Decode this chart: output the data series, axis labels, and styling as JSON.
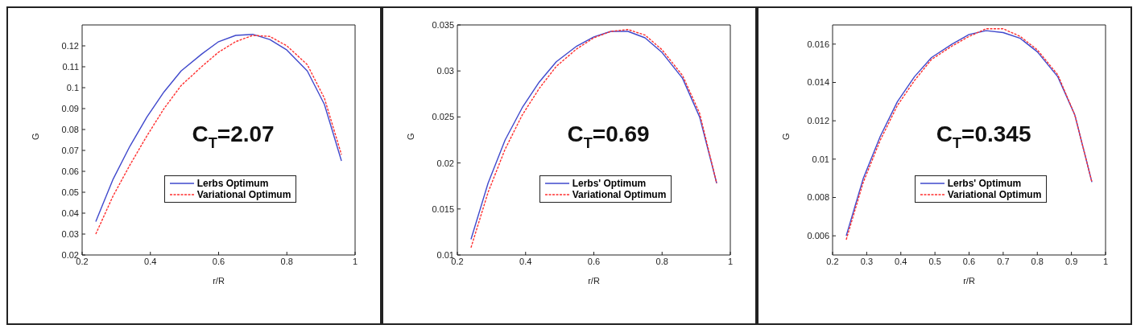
{
  "chart_data": [
    {
      "type": "line",
      "xlabel": "r/R",
      "ylabel": "G",
      "annotations": [
        "C$_{T}$=2.07"
      ],
      "x": [
        0.24,
        0.29,
        0.34,
        0.39,
        0.44,
        0.49,
        0.55,
        0.6,
        0.65,
        0.7,
        0.75,
        0.8,
        0.86,
        0.91,
        0.96
      ],
      "xlim": [
        0.2,
        1
      ],
      "xticks": [
        0.2,
        0.4,
        0.6,
        0.8,
        1
      ],
      "ylim": [
        0.02,
        0.13
      ],
      "yticks": [
        0.02,
        0.03,
        0.04,
        0.05,
        0.06,
        0.07,
        0.08,
        0.09,
        0.1,
        0.11,
        0.12
      ],
      "legend": "bottom",
      "grid": false,
      "marker": "none",
      "series": [
        {
          "name": "Lerbs Optimum",
          "color": "#3f48cc",
          "line_style": "solid",
          "values": [
            0.036,
            0.056,
            0.072,
            0.086,
            0.098,
            0.108,
            0.116,
            0.122,
            0.125,
            0.1255,
            0.123,
            0.118,
            0.108,
            0.092,
            0.065
          ]
        },
        {
          "name": "Variational Optimum",
          "color": "#ff3030",
          "line_style": "dashed",
          "values": [
            0.03,
            0.048,
            0.063,
            0.077,
            0.09,
            0.101,
            0.11,
            0.117,
            0.122,
            0.125,
            0.1245,
            0.12,
            0.111,
            0.095,
            0.068
          ]
        }
      ]
    },
    {
      "type": "line",
      "xlabel": "r/R",
      "ylabel": "G",
      "annotations": [
        "C$_{T}$=0.69"
      ],
      "x": [
        0.24,
        0.29,
        0.34,
        0.39,
        0.44,
        0.49,
        0.55,
        0.6,
        0.65,
        0.7,
        0.75,
        0.8,
        0.86,
        0.91,
        0.96
      ],
      "xlim": [
        0.2,
        1
      ],
      "xticks": [
        0.2,
        0.4,
        0.6,
        0.8,
        1
      ],
      "ylim": [
        0.01,
        0.035
      ],
      "yticks": [
        0.01,
        0.015,
        0.02,
        0.025,
        0.03,
        0.035
      ],
      "legend": "bottom",
      "grid": false,
      "marker": "none",
      "series": [
        {
          "name": "Lerbs' Optimum",
          "color": "#3f48cc",
          "line_style": "solid",
          "values": [
            0.0117,
            0.0178,
            0.0225,
            0.026,
            0.0288,
            0.031,
            0.0327,
            0.0337,
            0.0343,
            0.0343,
            0.0336,
            0.032,
            0.0292,
            0.025,
            0.0178
          ]
        },
        {
          "name": "Variational Optimum",
          "color": "#ff3030",
          "line_style": "dashed",
          "values": [
            0.0108,
            0.0168,
            0.0215,
            0.0252,
            0.0281,
            0.0305,
            0.0324,
            0.0336,
            0.0343,
            0.0345,
            0.0339,
            0.0323,
            0.0295,
            0.0254,
            0.0178
          ]
        }
      ]
    },
    {
      "type": "line",
      "xlabel": "r/R",
      "ylabel": "G",
      "annotations": [
        "C$_{T}$=0.345"
      ],
      "x": [
        0.24,
        0.29,
        0.34,
        0.39,
        0.44,
        0.49,
        0.55,
        0.6,
        0.65,
        0.7,
        0.75,
        0.8,
        0.86,
        0.91,
        0.96
      ],
      "xlim": [
        0.2,
        1
      ],
      "xticks": [
        0.2,
        0.3,
        0.4,
        0.5,
        0.6,
        0.7,
        0.8,
        0.9,
        1
      ],
      "ylim": [
        0.005,
        0.017
      ],
      "yticks": [
        0.006,
        0.008,
        0.01,
        0.012,
        0.014,
        0.016
      ],
      "legend": "bottom",
      "grid": false,
      "marker": "none",
      "series": [
        {
          "name": "Lerbs' Optimum",
          "color": "#3f48cc",
          "line_style": "solid",
          "values": [
            0.006,
            0.009,
            0.0112,
            0.013,
            0.0143,
            0.0153,
            0.016,
            0.0165,
            0.0167,
            0.0166,
            0.0163,
            0.0156,
            0.0143,
            0.0123,
            0.0088
          ]
        },
        {
          "name": "Variational Optimum",
          "color": "#ff3030",
          "line_style": "dashed",
          "values": [
            0.0058,
            0.0088,
            0.011,
            0.0128,
            0.0141,
            0.0152,
            0.0159,
            0.0164,
            0.0168,
            0.0168,
            0.0164,
            0.0157,
            0.0144,
            0.0123,
            0.0088
          ]
        }
      ]
    }
  ]
}
